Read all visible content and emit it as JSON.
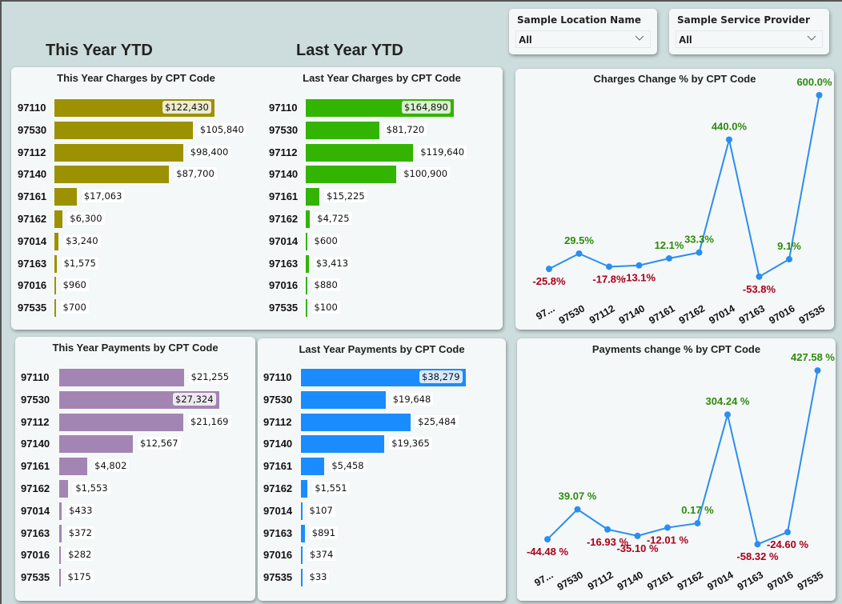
{
  "sections": {
    "this_year": "This Year YTD",
    "last_year": "Last Year YTD"
  },
  "slicers": [
    {
      "label": "Sample Location Name",
      "value": "All"
    },
    {
      "label": "Sample Service Provider",
      "value": "All"
    }
  ],
  "colors": {
    "ty_charges": "#9c9100",
    "ly_charges": "#33b400",
    "ty_payments": "#a385b3",
    "ly_payments": "#1b8cff",
    "line": "#2a8ef0",
    "positive": "#2d8a0c",
    "negative": "#a8001a"
  },
  "chart_data": [
    {
      "id": "ty_charges",
      "type": "bar",
      "title": "This Year Charges by CPT Code",
      "categories": [
        "97110",
        "97530",
        "97112",
        "97140",
        "97161",
        "97162",
        "97014",
        "97163",
        "97016",
        "97535"
      ],
      "values": [
        122430,
        105840,
        98400,
        87700,
        17063,
        6300,
        3240,
        1575,
        960,
        700
      ],
      "labels": [
        "$122,430",
        "$105,840",
        "$98,400",
        "$87,700",
        "$17,063",
        "$6,300",
        "$3,240",
        "$1,575",
        "$960",
        "$700"
      ],
      "xlim": [
        0,
        122430
      ]
    },
    {
      "id": "ly_charges",
      "type": "bar",
      "title": "Last Year Charges by CPT Code",
      "categories": [
        "97110",
        "97530",
        "97112",
        "97140",
        "97161",
        "97162",
        "97014",
        "97163",
        "97016",
        "97535"
      ],
      "values": [
        164890,
        81720,
        119640,
        100900,
        15225,
        4725,
        600,
        3413,
        880,
        100
      ],
      "labels": [
        "$164,890",
        "$81,720",
        "$119,640",
        "$100,900",
        "$15,225",
        "$4,725",
        "$600",
        "$3,413",
        "$880",
        "$100"
      ],
      "xlim": [
        0,
        164890
      ]
    },
    {
      "id": "ty_payments",
      "type": "bar",
      "title": "This Year Payments by CPT Code",
      "categories": [
        "97110",
        "97530",
        "97112",
        "97140",
        "97161",
        "97162",
        "97014",
        "97163",
        "97016",
        "97535"
      ],
      "values": [
        21255,
        27324,
        21169,
        12567,
        4802,
        1553,
        433,
        372,
        282,
        175
      ],
      "labels": [
        "$21,255",
        "$27,324",
        "$21,169",
        "$12,567",
        "$4,802",
        "$1,553",
        "$433",
        "$372",
        "$282",
        "$175"
      ],
      "xlim": [
        0,
        27324
      ]
    },
    {
      "id": "ly_payments",
      "type": "bar",
      "title": "Last Year Payments by CPT Code",
      "categories": [
        "97110",
        "97530",
        "97112",
        "97140",
        "97161",
        "97162",
        "97014",
        "97163",
        "97016",
        "97535"
      ],
      "values": [
        38279,
        19648,
        25484,
        19365,
        5458,
        1551,
        107,
        891,
        374,
        33
      ],
      "labels": [
        "$38,279",
        "$19,648",
        "$25,484",
        "$19,365",
        "$5,458",
        "$1,551",
        "$107",
        "$891",
        "$374",
        "$33"
      ],
      "xlim": [
        0,
        38279
      ]
    },
    {
      "id": "charges_change",
      "type": "line",
      "title": "Charges Change % by CPT Code",
      "categories": [
        "97...",
        "97530",
        "97112",
        "97140",
        "97161",
        "97162",
        "97014",
        "97163",
        "97016",
        "97535"
      ],
      "values": [
        -25.8,
        29.5,
        -17.8,
        -13.1,
        12.1,
        33.3,
        440.0,
        -53.8,
        9.1,
        600.0
      ],
      "labels": [
        "-25.8%",
        "29.5%",
        "-17.8%",
        "-13.1%",
        "12.1%",
        "33.3%",
        "440.0%",
        "-53.8%",
        "9.1%",
        "600.0%"
      ],
      "ylim": [
        -60,
        600
      ]
    },
    {
      "id": "payments_change",
      "type": "line",
      "title": "Payments change % by CPT Code",
      "categories": [
        "97...",
        "97530",
        "97112",
        "97140",
        "97161",
        "97162",
        "97014",
        "97163",
        "97016",
        "97535"
      ],
      "values": [
        -44.48,
        39.07,
        -16.93,
        -35.1,
        -12.01,
        0.17,
        304.24,
        -58.32,
        -24.6,
        427.58
      ],
      "labels": [
        "-44.48 %",
        "39.07 %",
        "-16.93 %",
        "-35.10 %",
        "-12.01 %",
        "0.17 %",
        "304.24 %",
        "-58.32 %",
        "-24.60 %",
        "427.58 %"
      ],
      "ylim": [
        -60,
        430
      ]
    }
  ]
}
